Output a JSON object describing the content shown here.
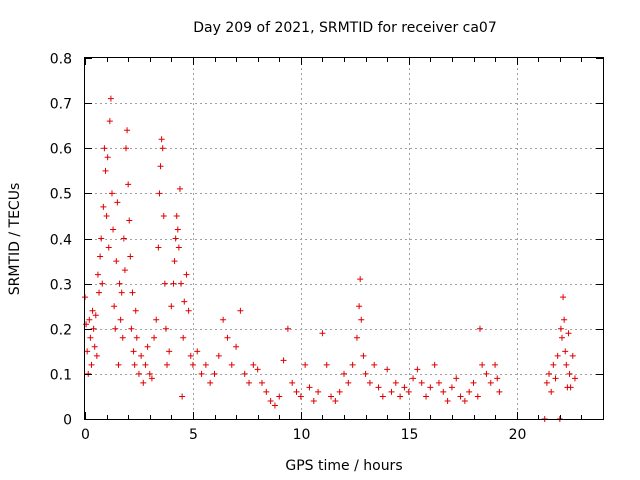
{
  "chart_data": {
    "type": "scatter",
    "title": "Day 209 of 2021, SRMTID for receiver ca07",
    "xlabel": "GPS time / hours",
    "ylabel": "SRMTID / TECUs",
    "xlim": [
      0,
      24
    ],
    "ylim": [
      0,
      0.8
    ],
    "xticks": [
      0,
      5,
      10,
      15,
      20
    ],
    "xtick_labels": [
      "0",
      "5",
      "10",
      "15",
      "20"
    ],
    "yticks": [
      0,
      0.1,
      0.2,
      0.3,
      0.4,
      0.5,
      0.6,
      0.7,
      0.8
    ],
    "ytick_labels": [
      "0",
      "0.1",
      "0.2",
      "0.3",
      "0.4",
      "0.5",
      "0.6",
      "0.7",
      "0.8"
    ],
    "grid": true,
    "marker": "+",
    "color": "#e00000",
    "series": [
      {
        "name": "ca07",
        "points": [
          [
            0.0,
            0.27
          ],
          [
            0.05,
            0.21
          ],
          [
            0.1,
            0.15
          ],
          [
            0.15,
            0.1
          ],
          [
            0.2,
            0.22
          ],
          [
            0.25,
            0.18
          ],
          [
            0.3,
            0.12
          ],
          [
            0.35,
            0.24
          ],
          [
            0.4,
            0.2
          ],
          [
            0.45,
            0.16
          ],
          [
            0.5,
            0.23
          ],
          [
            0.55,
            0.14
          ],
          [
            0.6,
            0.32
          ],
          [
            0.65,
            0.28
          ],
          [
            0.7,
            0.36
          ],
          [
            0.75,
            0.4
          ],
          [
            0.8,
            0.3
          ],
          [
            0.85,
            0.47
          ],
          [
            0.9,
            0.6
          ],
          [
            0.95,
            0.55
          ],
          [
            1.0,
            0.45
          ],
          [
            1.05,
            0.58
          ],
          [
            1.1,
            0.38
          ],
          [
            1.15,
            0.66
          ],
          [
            1.2,
            0.71
          ],
          [
            1.25,
            0.5
          ],
          [
            1.3,
            0.42
          ],
          [
            1.35,
            0.25
          ],
          [
            1.4,
            0.2
          ],
          [
            1.45,
            0.35
          ],
          [
            1.5,
            0.48
          ],
          [
            1.55,
            0.12
          ],
          [
            1.6,
            0.3
          ],
          [
            1.65,
            0.22
          ],
          [
            1.7,
            0.28
          ],
          [
            1.75,
            0.18
          ],
          [
            1.8,
            0.4
          ],
          [
            1.85,
            0.33
          ],
          [
            1.9,
            0.6
          ],
          [
            1.95,
            0.64
          ],
          [
            2.0,
            0.52
          ],
          [
            2.05,
            0.44
          ],
          [
            2.1,
            0.36
          ],
          [
            2.15,
            0.2
          ],
          [
            2.2,
            0.28
          ],
          [
            2.25,
            0.15
          ],
          [
            2.3,
            0.12
          ],
          [
            2.35,
            0.24
          ],
          [
            2.4,
            0.18
          ],
          [
            2.5,
            0.1
          ],
          [
            2.6,
            0.14
          ],
          [
            2.7,
            0.08
          ],
          [
            2.8,
            0.12
          ],
          [
            2.9,
            0.16
          ],
          [
            3.0,
            0.1
          ],
          [
            3.1,
            0.09
          ],
          [
            3.2,
            0.18
          ],
          [
            3.3,
            0.22
          ],
          [
            3.4,
            0.38
          ],
          [
            3.45,
            0.5
          ],
          [
            3.5,
            0.56
          ],
          [
            3.55,
            0.62
          ],
          [
            3.6,
            0.6
          ],
          [
            3.65,
            0.45
          ],
          [
            3.7,
            0.3
          ],
          [
            3.75,
            0.2
          ],
          [
            3.8,
            0.12
          ],
          [
            3.9,
            0.15
          ],
          [
            4.0,
            0.25
          ],
          [
            4.1,
            0.3
          ],
          [
            4.15,
            0.35
          ],
          [
            4.2,
            0.4
          ],
          [
            4.25,
            0.45
          ],
          [
            4.3,
            0.42
          ],
          [
            4.35,
            0.38
          ],
          [
            4.4,
            0.51
          ],
          [
            4.45,
            0.3
          ],
          [
            4.5,
            0.05
          ],
          [
            4.55,
            0.18
          ],
          [
            4.6,
            0.26
          ],
          [
            4.7,
            0.32
          ],
          [
            4.8,
            0.24
          ],
          [
            4.9,
            0.14
          ],
          [
            5.0,
            0.12
          ],
          [
            5.2,
            0.15
          ],
          [
            5.4,
            0.1
          ],
          [
            5.6,
            0.12
          ],
          [
            5.8,
            0.08
          ],
          [
            6.0,
            0.1
          ],
          [
            6.2,
            0.14
          ],
          [
            6.4,
            0.22
          ],
          [
            6.6,
            0.18
          ],
          [
            6.8,
            0.12
          ],
          [
            7.0,
            0.16
          ],
          [
            7.2,
            0.24
          ],
          [
            7.4,
            0.1
          ],
          [
            7.6,
            0.08
          ],
          [
            7.8,
            0.12
          ],
          [
            8.0,
            0.11
          ],
          [
            8.2,
            0.08
          ],
          [
            8.4,
            0.06
          ],
          [
            8.6,
            0.04
          ],
          [
            8.8,
            0.03
          ],
          [
            9.0,
            0.05
          ],
          [
            9.2,
            0.13
          ],
          [
            9.4,
            0.2
          ],
          [
            9.6,
            0.08
          ],
          [
            9.8,
            0.06
          ],
          [
            10.0,
            0.05
          ],
          [
            10.2,
            0.12
          ],
          [
            10.4,
            0.07
          ],
          [
            10.6,
            0.04
          ],
          [
            10.8,
            0.06
          ],
          [
            11.0,
            0.19
          ],
          [
            11.2,
            0.12
          ],
          [
            11.4,
            0.05
          ],
          [
            11.6,
            0.04
          ],
          [
            11.8,
            0.06
          ],
          [
            12.0,
            0.1
          ],
          [
            12.2,
            0.08
          ],
          [
            12.4,
            0.12
          ],
          [
            12.6,
            0.18
          ],
          [
            12.7,
            0.25
          ],
          [
            12.75,
            0.31
          ],
          [
            12.8,
            0.22
          ],
          [
            12.9,
            0.14
          ],
          [
            13.0,
            0.1
          ],
          [
            13.2,
            0.08
          ],
          [
            13.4,
            0.12
          ],
          [
            13.6,
            0.07
          ],
          [
            13.8,
            0.05
          ],
          [
            14.0,
            0.11
          ],
          [
            14.2,
            0.06
          ],
          [
            14.4,
            0.08
          ],
          [
            14.6,
            0.05
          ],
          [
            14.8,
            0.07
          ],
          [
            15.0,
            0.06
          ],
          [
            15.2,
            0.09
          ],
          [
            15.4,
            0.11
          ],
          [
            15.6,
            0.08
          ],
          [
            15.8,
            0.05
          ],
          [
            16.0,
            0.07
          ],
          [
            16.2,
            0.12
          ],
          [
            16.4,
            0.08
          ],
          [
            16.6,
            0.06
          ],
          [
            16.8,
            0.04
          ],
          [
            17.0,
            0.07
          ],
          [
            17.2,
            0.09
          ],
          [
            17.4,
            0.05
          ],
          [
            17.6,
            0.04
          ],
          [
            17.8,
            0.06
          ],
          [
            18.0,
            0.08
          ],
          [
            18.2,
            0.05
          ],
          [
            18.3,
            0.2
          ],
          [
            18.4,
            0.12
          ],
          [
            18.6,
            0.1
          ],
          [
            18.8,
            0.08
          ],
          [
            19.0,
            0.12
          ],
          [
            19.1,
            0.09
          ],
          [
            19.2,
            0.06
          ],
          [
            21.3,
            0.0
          ],
          [
            21.4,
            0.08
          ],
          [
            21.5,
            0.1
          ],
          [
            21.6,
            0.06
          ],
          [
            21.7,
            0.12
          ],
          [
            21.8,
            0.09
          ],
          [
            21.9,
            0.14
          ],
          [
            22.0,
            0.0
          ],
          [
            22.05,
            0.2
          ],
          [
            22.1,
            0.18
          ],
          [
            22.15,
            0.27
          ],
          [
            22.2,
            0.22
          ],
          [
            22.25,
            0.15
          ],
          [
            22.3,
            0.12
          ],
          [
            22.35,
            0.07
          ],
          [
            22.4,
            0.19
          ],
          [
            22.45,
            0.1
          ],
          [
            22.5,
            0.07
          ],
          [
            22.6,
            0.14
          ],
          [
            22.7,
            0.09
          ]
        ]
      }
    ]
  }
}
